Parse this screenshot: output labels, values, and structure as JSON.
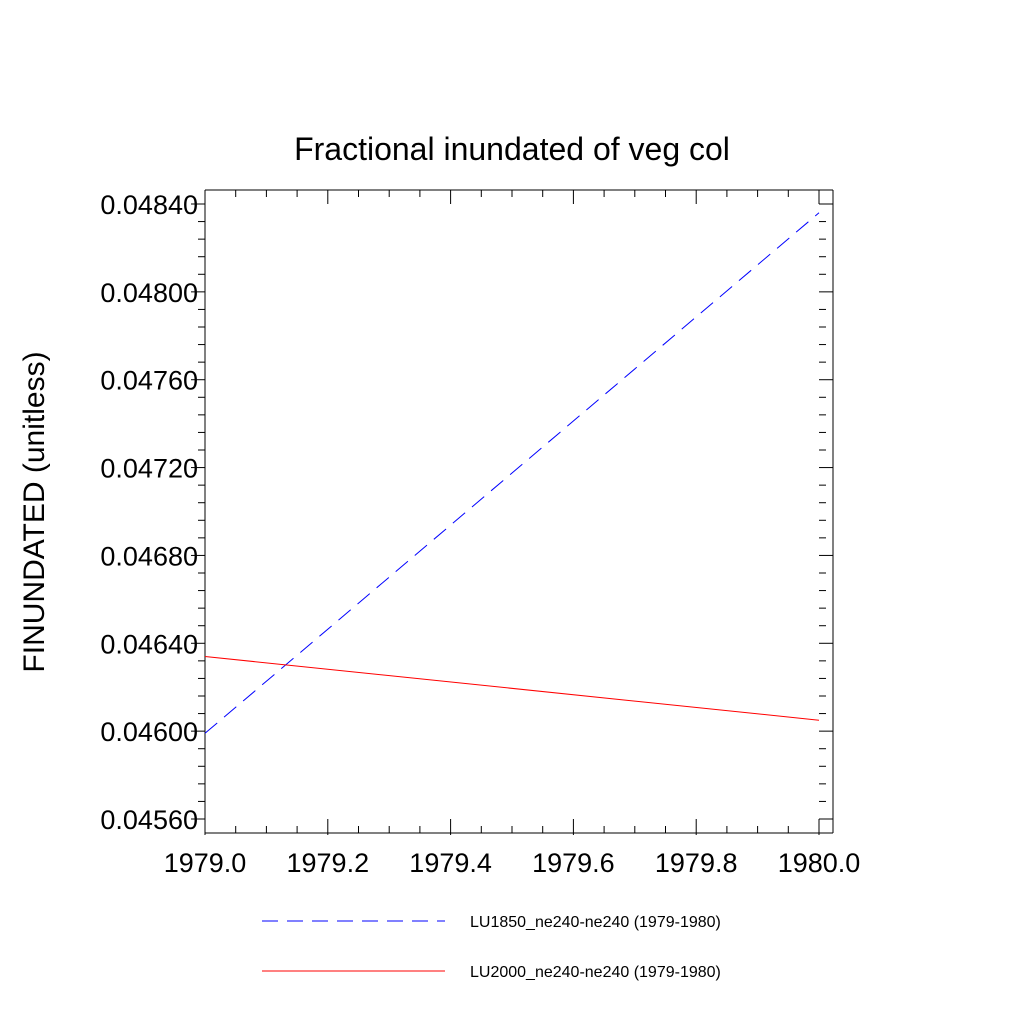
{
  "chart_data": {
    "type": "line",
    "title": "Fractional inundated of veg col",
    "xlabel": "",
    "ylabel": "FINUNDATED  (unitless)",
    "xlim": [
      1979.0,
      1980.0
    ],
    "ylim": [
      0.0456,
      0.0484
    ],
    "x_ticks": [
      1979.0,
      1979.2,
      1979.4,
      1979.6,
      1979.8,
      1980.0
    ],
    "x_tick_labels": [
      "1979.0",
      "1979.2",
      "1979.4",
      "1979.6",
      "1979.8",
      "1980.0"
    ],
    "y_ticks": [
      0.0456,
      0.046,
      0.0464,
      0.0468,
      0.0472,
      0.0476,
      0.048,
      0.0484
    ],
    "y_tick_labels": [
      "0.04560",
      "0.04600",
      "0.04640",
      "0.04680",
      "0.04720",
      "0.04760",
      "0.04800",
      "0.04840"
    ],
    "grid": false,
    "legend_position": "bottom",
    "series": [
      {
        "name": "LU1850_ne240-ne240 (1979-1980)",
        "color": "#0000ff",
        "style": "dashed",
        "x": [
          1979.0,
          1980.0
        ],
        "y": [
          0.04599,
          0.04836
        ]
      },
      {
        "name": "LU2000_ne240-ne240 (1979-1980)",
        "color": "#ff0000",
        "style": "solid",
        "x": [
          1979.0,
          1980.0
        ],
        "y": [
          0.04634,
          0.04605
        ]
      }
    ]
  }
}
